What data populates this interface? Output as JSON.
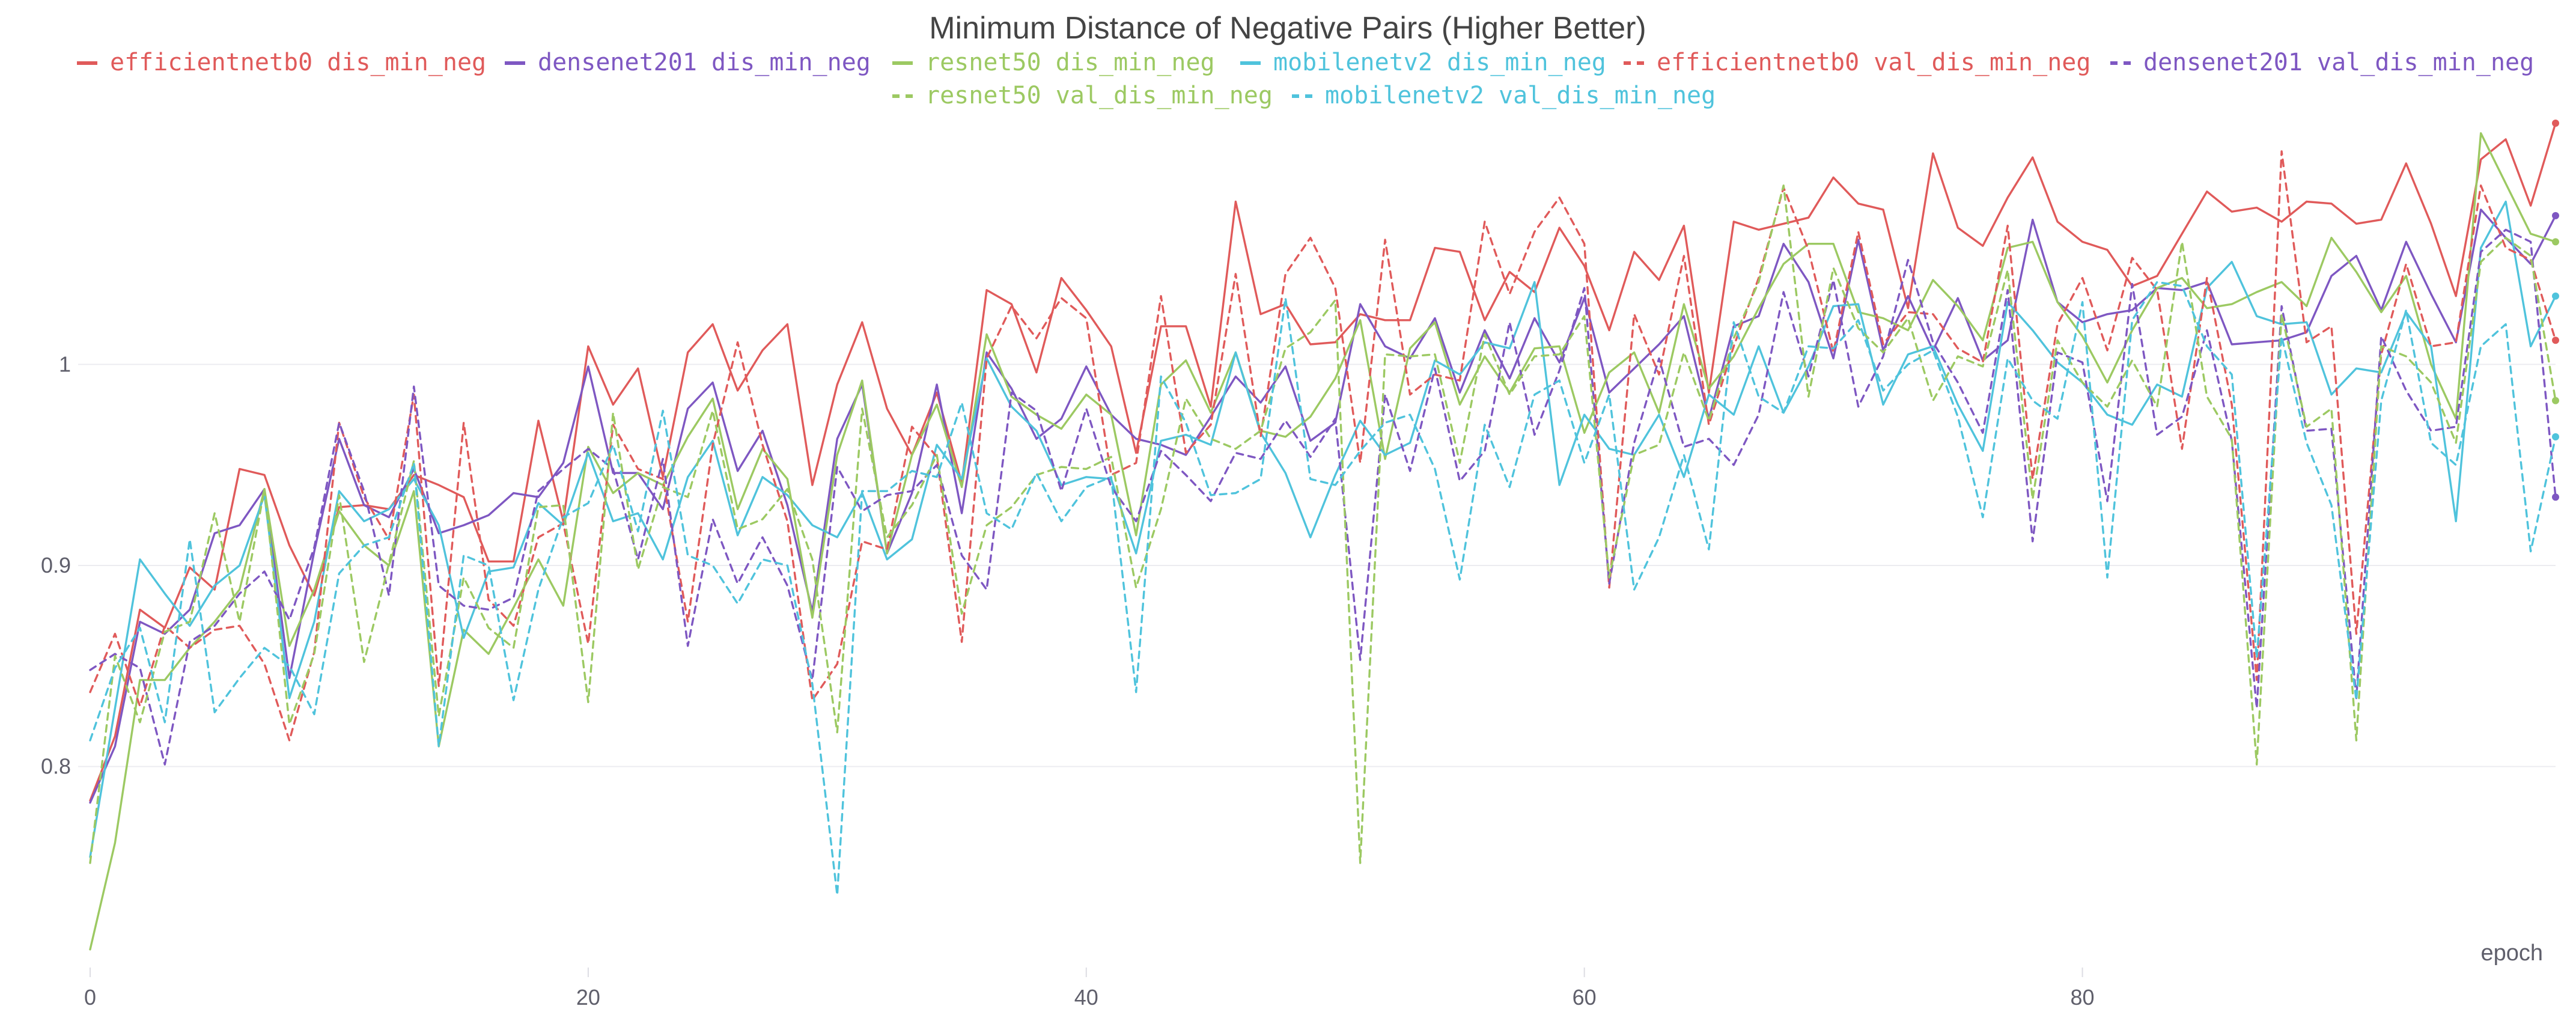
{
  "chart_data": {
    "type": "line",
    "title": "Minimum Distance of Negative Pairs (Higher Better)",
    "xlabel": "epoch",
    "ylabel": "",
    "xlim": [
      0,
      99
    ],
    "ylim": [
      0.7,
      1.12
    ],
    "x_ticks": [
      0,
      20,
      40,
      60,
      80
    ],
    "y_ticks": [
      0.8,
      0.9,
      1
    ],
    "y_tick_labels": [
      "0.8",
      "0.9",
      "1"
    ],
    "grid": true,
    "legend_position": "top",
    "series": [
      {
        "name": "efficientnetb0 dis_min_neg",
        "color": "#e05a5a",
        "dash": "solid",
        "values": [
          0.783,
          0.815,
          0.878,
          0.869,
          0.899,
          0.888,
          0.948,
          0.945,
          0.91,
          0.885,
          0.929,
          0.93,
          0.928,
          0.945,
          0.94,
          0.934,
          0.902,
          0.902,
          0.972,
          0.922,
          1.009,
          0.98,
          0.998,
          0.944,
          1.006,
          1.02,
          0.987,
          1.007,
          1.02,
          0.94,
          0.99,
          1.021,
          0.978,
          0.955,
          0.986,
          0.941,
          1.037,
          1.03,
          0.996,
          1.043,
          1.027,
          1.009,
          0.956,
          1.019,
          1.019,
          0.979,
          1.081,
          1.025,
          1.03,
          1.01,
          1.011,
          1.025,
          1.022,
          1.022,
          1.058,
          1.056,
          1.022,
          1.046,
          1.036,
          1.068,
          1.049,
          1.017,
          1.056,
          1.042,
          1.069,
          0.986,
          1.071,
          1.067,
          1.07,
          1.073,
          1.093,
          1.08,
          1.077,
          1.028,
          1.105,
          1.068,
          1.059,
          1.083,
          1.103,
          1.071,
          1.061,
          1.057,
          1.039,
          1.044,
          1.065,
          1.086,
          1.076,
          1.078,
          1.071,
          1.081,
          1.08,
          1.07,
          1.072,
          1.1,
          1.07,
          1.034,
          1.102,
          1.112,
          1.079,
          1.12
        ]
      },
      {
        "name": "densenet201 dis_min_neg",
        "color": "#7e57c2",
        "dash": "solid",
        "values": [
          0.782,
          0.81,
          0.872,
          0.866,
          0.878,
          0.916,
          0.92,
          0.938,
          0.844,
          0.907,
          0.963,
          0.93,
          0.924,
          0.948,
          0.916,
          0.92,
          0.925,
          0.936,
          0.934,
          0.951,
          0.999,
          0.946,
          0.946,
          0.928,
          0.978,
          0.991,
          0.947,
          0.967,
          0.93,
          0.877,
          0.963,
          0.99,
          0.906,
          0.936,
          0.99,
          0.926,
          1.006,
          0.988,
          0.963,
          0.973,
          0.999,
          0.975,
          0.963,
          0.96,
          0.955,
          0.974,
          0.994,
          0.981,
          0.999,
          0.962,
          0.971,
          1.03,
          1.009,
          1.003,
          1.023,
          0.986,
          1.017,
          0.993,
          1.023,
          1.001,
          1.033,
          0.986,
          0.998,
          1.01,
          1.024,
          0.973,
          1.019,
          1.024,
          1.06,
          1.041,
          1.003,
          1.062,
          1.007,
          1.034,
          1.007,
          1.033,
          1.002,
          1.012,
          1.072,
          1.031,
          1.021,
          1.025,
          1.027,
          1.038,
          1.037,
          1.041,
          1.01,
          1.011,
          1.012,
          1.016,
          1.044,
          1.054,
          1.027,
          1.061,
          1.035,
          1.011,
          1.077,
          1.063,
          1.05,
          1.074
        ]
      },
      {
        "name": "resnet50 dis_min_neg",
        "color": "#9cc962",
        "dash": "solid",
        "values": [
          0.709,
          0.762,
          0.843,
          0.843,
          0.859,
          0.872,
          0.888,
          0.938,
          0.86,
          0.888,
          0.927,
          0.91,
          0.9,
          0.937,
          0.81,
          0.868,
          0.856,
          0.879,
          0.903,
          0.88,
          0.959,
          0.936,
          0.946,
          0.94,
          0.964,
          0.983,
          0.928,
          0.958,
          0.943,
          0.874,
          0.955,
          0.992,
          0.906,
          0.955,
          0.98,
          0.939,
          1.015,
          0.984,
          0.975,
          0.968,
          0.985,
          0.975,
          0.915,
          0.99,
          1.002,
          0.976,
          1.006,
          0.967,
          0.964,
          0.974,
          0.993,
          1.022,
          0.953,
          1.008,
          1.021,
          0.98,
          1.004,
          0.986,
          1.008,
          1.009,
          0.966,
          0.996,
          1.006,
          0.976,
          1.03,
          0.988,
          1.004,
          1.028,
          1.05,
          1.06,
          1.06,
          1.026,
          1.023,
          1.017,
          1.042,
          1.029,
          1.012,
          1.058,
          1.061,
          1.031,
          1.014,
          0.991,
          1.017,
          1.038,
          1.043,
          1.028,
          1.03,
          1.036,
          1.041,
          1.029,
          1.063,
          1.046,
          1.026,
          1.044,
          1.0,
          0.973,
          1.115,
          1.09,
          1.065,
          1.061
        ]
      },
      {
        "name": "mobilenetv2 dis_min_neg",
        "color": "#4fc3dc",
        "dash": "solid",
        "values": [
          0.755,
          0.829,
          0.903,
          0.886,
          0.87,
          0.89,
          0.9,
          0.935,
          0.834,
          0.872,
          0.937,
          0.922,
          0.928,
          0.943,
          0.92,
          0.864,
          0.897,
          0.899,
          0.931,
          0.92,
          0.956,
          0.922,
          0.926,
          0.903,
          0.944,
          0.962,
          0.915,
          0.944,
          0.935,
          0.92,
          0.914,
          0.936,
          0.903,
          0.913,
          0.96,
          0.943,
          1.003,
          0.979,
          0.967,
          0.94,
          0.944,
          0.943,
          0.906,
          0.962,
          0.965,
          0.96,
          1.006,
          0.966,
          0.946,
          0.914,
          0.945,
          0.972,
          0.955,
          0.961,
          1.002,
          0.995,
          1.011,
          1.008,
          1.041,
          0.94,
          0.975,
          0.958,
          0.955,
          0.975,
          0.944,
          0.985,
          0.975,
          1.009,
          0.976,
          0.999,
          1.029,
          1.03,
          0.98,
          1.005,
          1.009,
          0.98,
          0.957,
          1.031,
          1.017,
          1.001,
          0.991,
          0.975,
          0.97,
          0.99,
          0.984,
          1.038,
          1.051,
          1.024,
          1.02,
          1.021,
          0.985,
          0.998,
          0.996,
          1.026,
          1.009,
          0.922,
          1.058,
          1.081,
          1.009,
          1.034
        ]
      },
      {
        "name": "efficientnetb0 val_dis_min_neg",
        "color": "#e05a5a",
        "dash": "dashed",
        "values": [
          0.837,
          0.866,
          0.83,
          0.87,
          0.859,
          0.868,
          0.87,
          0.851,
          0.813,
          0.857,
          0.971,
          0.934,
          0.913,
          0.985,
          0.84,
          0.971,
          0.883,
          0.87,
          0.914,
          0.921,
          0.861,
          0.97,
          0.948,
          0.943,
          0.872,
          0.96,
          1.011,
          0.96,
          0.922,
          0.833,
          0.851,
          0.912,
          0.908,
          0.969,
          0.954,
          0.862,
          1.003,
          1.029,
          1.013,
          1.033,
          1.023,
          0.945,
          0.951,
          1.034,
          0.956,
          0.97,
          1.045,
          0.964,
          1.045,
          1.063,
          1.038,
          0.951,
          1.062,
          0.985,
          0.995,
          0.992,
          1.071,
          1.035,
          1.066,
          1.083,
          1.06,
          0.889,
          1.025,
          0.995,
          1.054,
          0.97,
          1.009,
          1.043,
          1.088,
          1.057,
          1.006,
          1.066,
          1.01,
          1.026,
          1.025,
          1.008,
          1.001,
          1.069,
          0.943,
          1.02,
          1.043,
          1.007,
          1.053,
          1.037,
          0.958,
          1.043,
          0.98,
          0.843,
          1.106,
          1.011,
          1.019,
          0.866,
          1.005,
          1.05,
          1.009,
          1.011,
          1.089,
          1.058,
          1.052,
          1.012
        ]
      },
      {
        "name": "densenet201 val_dis_min_neg",
        "color": "#7e57c2",
        "dash": "dashed",
        "values": [
          0.848,
          0.856,
          0.849,
          0.801,
          0.862,
          0.87,
          0.886,
          0.897,
          0.873,
          0.909,
          0.971,
          0.937,
          0.885,
          0.989,
          0.89,
          0.88,
          0.878,
          0.884,
          0.937,
          0.948,
          0.958,
          0.948,
          0.903,
          0.953,
          0.86,
          0.923,
          0.891,
          0.914,
          0.89,
          0.843,
          0.949,
          0.927,
          0.935,
          0.937,
          0.95,
          0.905,
          0.888,
          0.986,
          0.977,
          0.937,
          0.978,
          0.939,
          0.922,
          0.957,
          0.945,
          0.932,
          0.956,
          0.953,
          0.972,
          0.954,
          0.973,
          0.853,
          0.985,
          0.947,
          0.998,
          0.942,
          0.957,
          1.021,
          0.965,
          0.997,
          1.038,
          0.891,
          0.961,
          1.003,
          0.959,
          0.963,
          0.95,
          0.975,
          1.036,
          0.994,
          1.042,
          0.979,
          1.004,
          1.052,
          1.011,
          0.991,
          0.966,
          1.037,
          0.912,
          1.006,
          1.001,
          0.932,
          1.04,
          0.965,
          0.974,
          1.017,
          0.962,
          0.829,
          1.029,
          0.967,
          0.968,
          0.834,
          1.014,
          0.987,
          0.967,
          0.969,
          1.056,
          1.067,
          1.061,
          0.934
        ]
      },
      {
        "name": "resnet50 val_dis_min_neg",
        "color": "#9cc962",
        "dash": "dashed",
        "values": [
          0.752,
          0.855,
          0.822,
          0.867,
          0.872,
          0.926,
          0.872,
          0.938,
          0.821,
          0.856,
          0.935,
          0.852,
          0.901,
          0.952,
          0.825,
          0.894,
          0.869,
          0.859,
          0.929,
          0.93,
          0.832,
          0.976,
          0.898,
          0.939,
          0.934,
          0.977,
          0.918,
          0.923,
          0.938,
          0.903,
          0.817,
          0.978,
          0.914,
          0.93,
          0.955,
          0.876,
          0.92,
          0.929,
          0.945,
          0.949,
          0.948,
          0.954,
          0.889,
          0.928,
          0.983,
          0.963,
          0.958,
          0.967,
          1.008,
          1.016,
          1.032,
          0.752,
          1.005,
          1.004,
          1.005,
          0.951,
          1.015,
          0.985,
          1.004,
          1.005,
          1.024,
          0.894,
          0.955,
          0.96,
          1.006,
          0.972,
          1.013,
          1.041,
          1.089,
          0.984,
          1.048,
          1.018,
          1.006,
          1.023,
          0.982,
          1.004,
          0.999,
          1.047,
          0.933,
          1.012,
          0.991,
          0.979,
          1.002,
          0.979,
          1.061,
          0.984,
          0.963,
          0.801,
          1.025,
          0.969,
          0.978,
          0.813,
          1.009,
          1.004,
          0.991,
          0.961,
          1.051,
          1.063,
          1.054,
          0.982
        ]
      },
      {
        "name": "mobilenetv2 val_dis_min_neg",
        "color": "#4fc3dc",
        "dash": "dashed",
        "values": [
          0.813,
          0.849,
          0.869,
          0.822,
          0.913,
          0.827,
          0.844,
          0.859,
          0.85,
          0.826,
          0.896,
          0.91,
          0.914,
          0.951,
          0.81,
          0.905,
          0.9,
          0.833,
          0.888,
          0.924,
          0.931,
          0.96,
          0.917,
          0.977,
          0.905,
          0.9,
          0.881,
          0.903,
          0.9,
          0.841,
          0.736,
          0.937,
          0.937,
          0.947,
          0.944,
          0.981,
          0.926,
          0.918,
          0.946,
          0.922,
          0.939,
          0.944,
          0.837,
          0.994,
          0.971,
          0.935,
          0.936,
          0.943,
          1.033,
          0.943,
          0.94,
          0.957,
          0.971,
          0.975,
          0.948,
          0.893,
          0.97,
          0.939,
          0.985,
          0.992,
          0.951,
          0.985,
          0.888,
          0.914,
          0.955,
          0.908,
          1.021,
          0.984,
          0.976,
          1.009,
          1.008,
          1.022,
          0.987,
          1.0,
          1.007,
          0.974,
          0.924,
          1.003,
          0.982,
          0.973,
          1.031,
          0.894,
          1.022,
          1.041,
          1.039,
          1.009,
          0.995,
          0.854,
          1.014,
          0.961,
          0.93,
          0.833,
          0.982,
          1.027,
          0.961,
          0.95,
          1.009,
          1.02,
          0.907,
          0.964
        ]
      }
    ]
  }
}
